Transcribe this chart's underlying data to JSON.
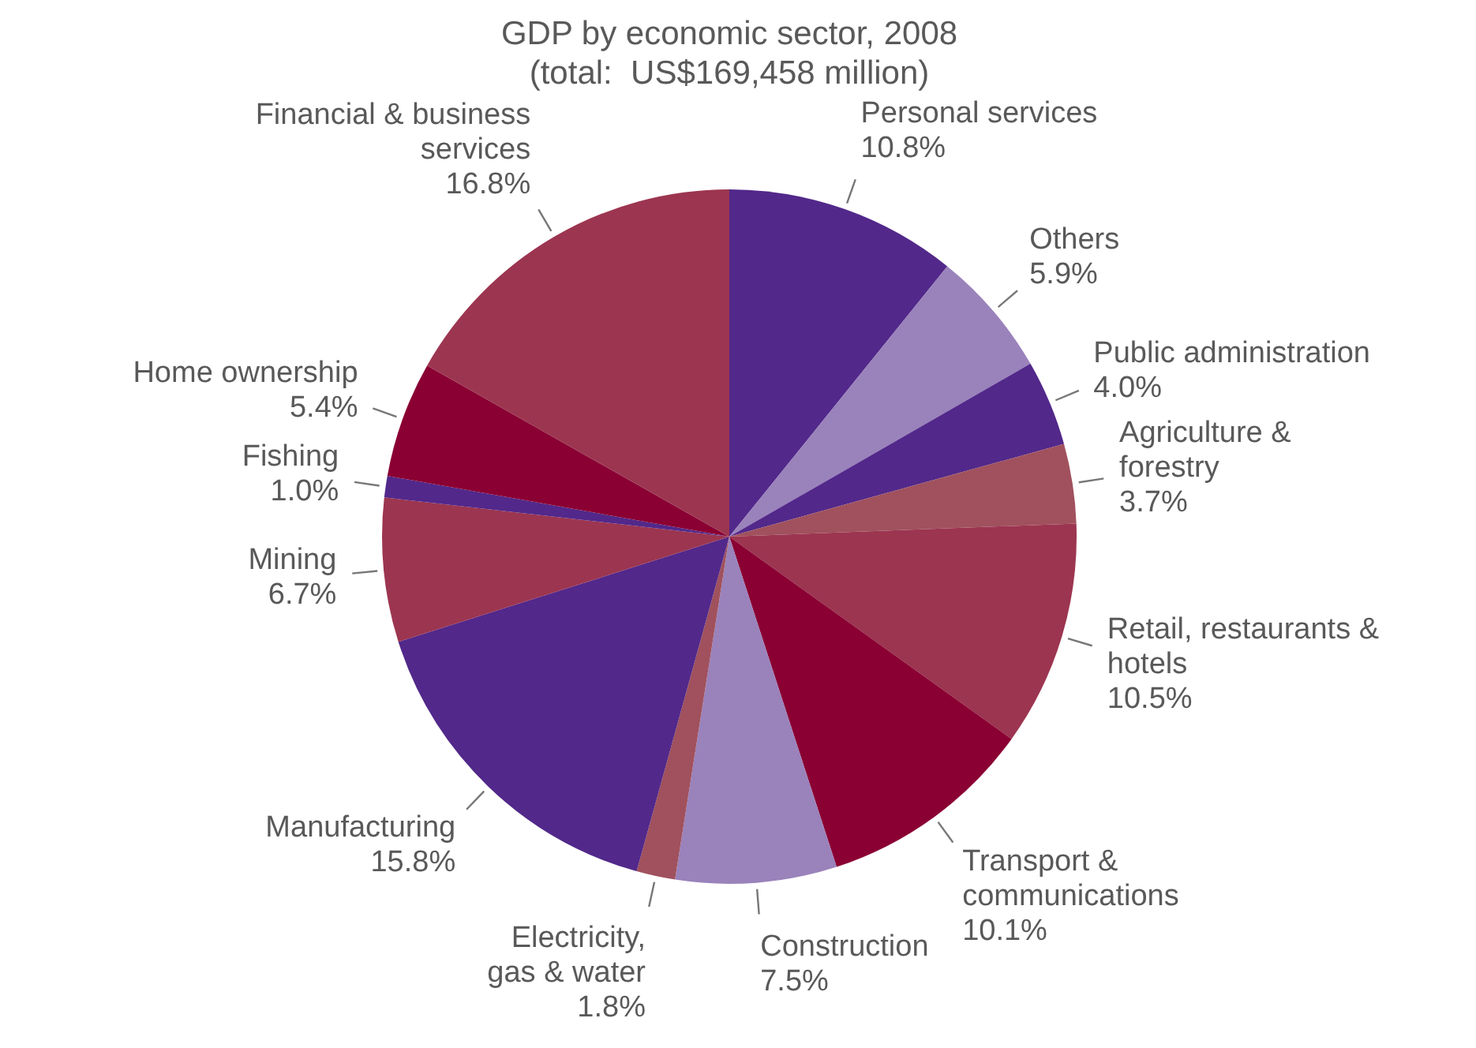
{
  "chart_data": {
    "type": "pie",
    "title": "GDP by economic sector, 2008",
    "subtitle": "(total:  US$169,458 million)",
    "categories": [
      "Personal services",
      "Others",
      "Public administration",
      "Agriculture &\nforestry",
      "Retail, restaurants &\nhotels",
      "Transport &\ncommunications",
      "Construction",
      "Electricity,\ngas & water",
      "Manufacturing",
      "Mining",
      "Fishing",
      "Home ownership",
      "Financial & business\nservices"
    ],
    "values": [
      10.8,
      5.9,
      4.0,
      3.7,
      10.5,
      10.1,
      7.5,
      1.8,
      15.8,
      6.7,
      1.0,
      5.4,
      16.8
    ],
    "value_labels": [
      "10.8%",
      "5.9%",
      "4.0%",
      "3.7%",
      "10.5%",
      "10.1%",
      "7.5%",
      "1.8%",
      "15.8%",
      "6.7%",
      "1.0%",
      "5.4%",
      "16.8%"
    ],
    "colors": [
      "#52288a",
      "#9a82bb",
      "#52288a",
      "#a0515d",
      "#9c3550",
      "#8a0033",
      "#9a82bb",
      "#a0515d",
      "#52288a",
      "#9c3550",
      "#52288a",
      "#8a0033",
      "#9c3550"
    ],
    "legend": false
  }
}
